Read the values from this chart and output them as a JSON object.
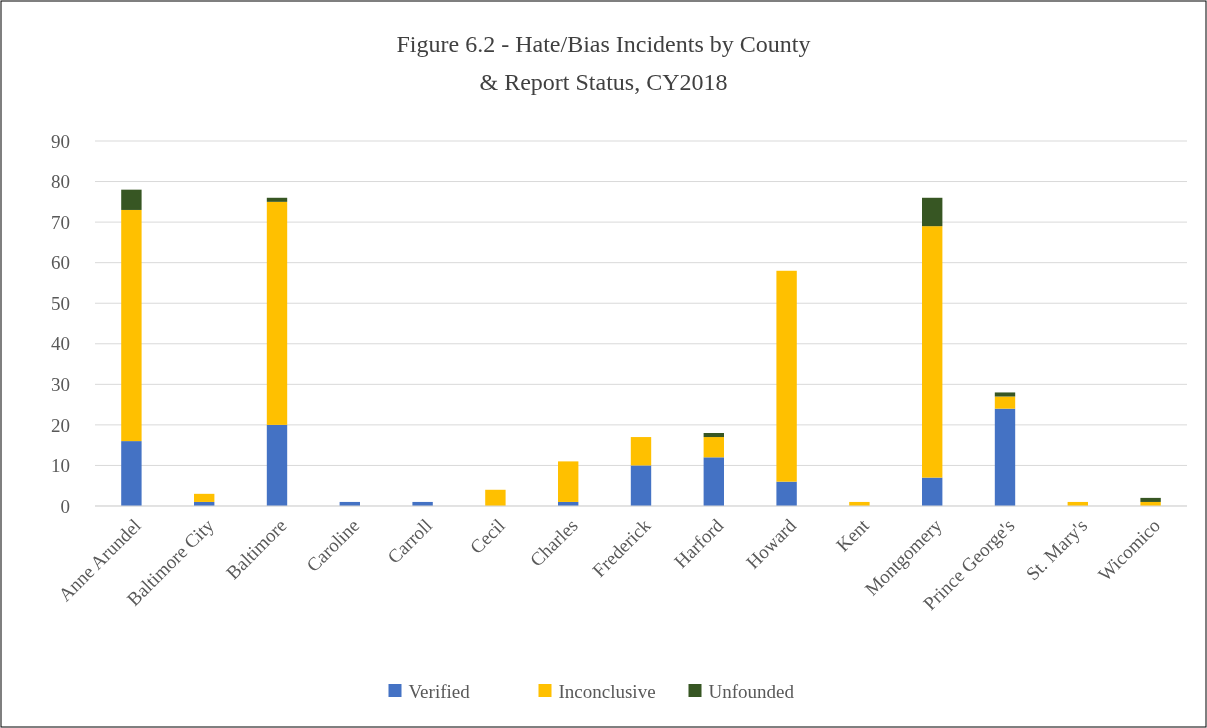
{
  "chart_data": {
    "type": "bar",
    "title": "Figure 6.2 - Hate/Bias Incidents by County & Report Status, CY2018",
    "categories": [
      "Anne Arundel",
      "Baltimore City",
      "Baltimore",
      "Caroline",
      "Carroll",
      "Cecil",
      "Charles",
      "Frederick",
      "Harford",
      "Howard",
      "Kent",
      "Montgomery",
      "Prince George's",
      "St. Mary's",
      "Wicomico"
    ],
    "series": [
      {
        "name": "Verified",
        "color": "#4472c4",
        "values": [
          16,
          1,
          20,
          1,
          1,
          0,
          1,
          10,
          12,
          6,
          0,
          7,
          24,
          0,
          0
        ]
      },
      {
        "name": "Inconclusive",
        "color": "#ffc000",
        "values": [
          57,
          2,
          55,
          0,
          0,
          4,
          10,
          7,
          5,
          52,
          1,
          62,
          3,
          1,
          1
        ]
      },
      {
        "name": "Unfounded",
        "color": "#375623",
        "values": [
          5,
          0,
          1,
          0,
          0,
          0,
          0,
          0,
          1,
          0,
          0,
          7,
          1,
          0,
          1
        ]
      }
    ],
    "stacked": true,
    "ylim": [
      0,
      90
    ],
    "yticks": [
      0,
      10,
      20,
      30,
      40,
      50,
      60,
      70,
      80,
      90
    ],
    "grid": "y",
    "legend": "bottom"
  }
}
